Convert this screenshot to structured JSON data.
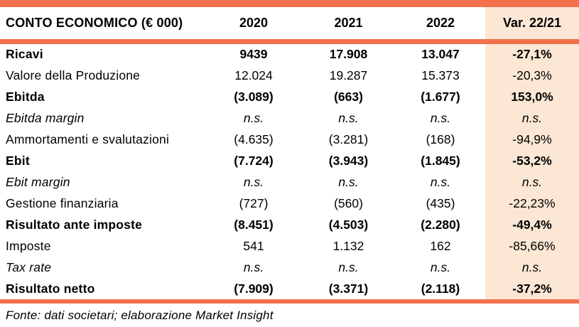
{
  "theme": {
    "accent_color": "#F2714C",
    "highlight_column_color": "#FBE7D4",
    "text_color": "#000000"
  },
  "table": {
    "header": {
      "label": "CONTO ECONOMICO (€ 000)",
      "columns": [
        "2020",
        "2021",
        "2022",
        "Var. 22/21"
      ]
    },
    "rows": [
      {
        "label": "Ricavi",
        "values": [
          "9439",
          "17.908",
          "13.047",
          "-27,1%"
        ],
        "emphasis": "bold"
      },
      {
        "label": "Valore della Produzione",
        "values": [
          "12.024",
          "19.287",
          "15.373",
          "-20,3%"
        ],
        "emphasis": "normal"
      },
      {
        "label": "Ebitda",
        "values": [
          "(3.089)",
          "(663)",
          "(1.677)",
          "153,0%"
        ],
        "emphasis": "bold"
      },
      {
        "label": "Ebitda margin",
        "values": [
          "n.s.",
          "n.s.",
          "n.s.",
          "n.s."
        ],
        "emphasis": "italic"
      },
      {
        "label": "Ammortamenti e svalutazioni",
        "values": [
          "(4.635)",
          "(3.281)",
          "(168)",
          "-94,9%"
        ],
        "emphasis": "normal"
      },
      {
        "label": "Ebit",
        "values": [
          "(7.724)",
          "(3.943)",
          "(1.845)",
          "-53,2%"
        ],
        "emphasis": "bold"
      },
      {
        "label": "Ebit margin",
        "values": [
          "n.s.",
          "n.s.",
          "n.s.",
          "n.s."
        ],
        "emphasis": "italic"
      },
      {
        "label": "Gestione finanziaria",
        "values": [
          "(727)",
          "(560)",
          "(435)",
          "-22,23%"
        ],
        "emphasis": "normal"
      },
      {
        "label": "Risultato ante imposte",
        "values": [
          "(8.451)",
          "(4.503)",
          "(2.280)",
          "-49,4%"
        ],
        "emphasis": "bold"
      },
      {
        "label": "Imposte",
        "values": [
          "541",
          "1.132",
          "162",
          "-85,66%"
        ],
        "emphasis": "normal"
      },
      {
        "label": "Tax rate",
        "values": [
          "n.s.",
          "n.s.",
          "n.s.",
          "n.s."
        ],
        "emphasis": "italic"
      },
      {
        "label": "Risultato netto",
        "values": [
          "(7.909)",
          "(3.371)",
          "(2.118)",
          "-37,2%"
        ],
        "emphasis": "bold"
      }
    ]
  },
  "footer": {
    "source_note": "Fonte: dati societari; elaborazione Market Insight"
  }
}
